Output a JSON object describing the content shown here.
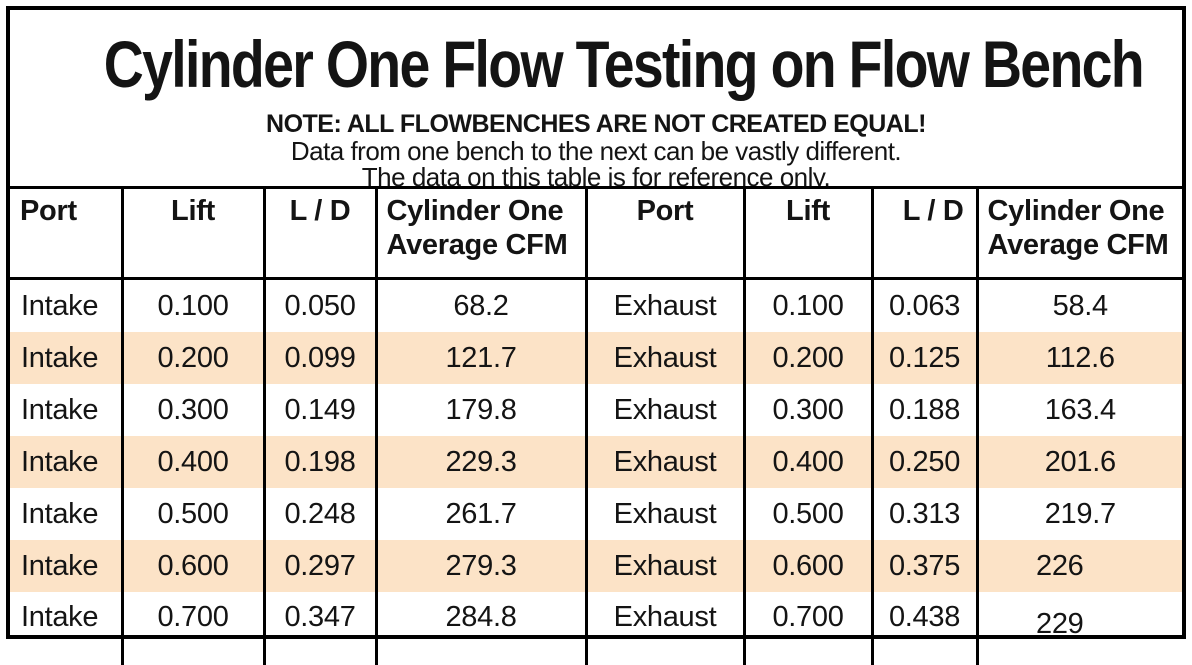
{
  "page": {
    "title": "Cylinder One Flow Testing on Flow Bench",
    "note_bold": "NOTE: ALL FLOWBENCHES ARE NOT CREATED EQUAL!",
    "note_line2": "Data from one bench to the next can be vastly different.",
    "note_line3": "The data on this table is for reference only."
  },
  "colors": {
    "border": "#000000",
    "text": "#141414",
    "row_highlight": "#FCE3C7",
    "background": "#FFFFFF"
  },
  "table": {
    "headers": [
      "Port",
      "Lift",
      "L / D",
      "Cylinder One Average CFM",
      "Port",
      "Lift",
      "L / D",
      "Cylinder One Average CFM"
    ],
    "rows": [
      [
        "Intake",
        "0.100",
        "0.050",
        "68.2",
        "Exhaust",
        "0.100",
        "0.063",
        "58.4"
      ],
      [
        "Intake",
        "0.200",
        "0.099",
        "121.7",
        "Exhaust",
        "0.200",
        "0.125",
        "112.6"
      ],
      [
        "Intake",
        "0.300",
        "0.149",
        "179.8",
        "Exhaust",
        "0.300",
        "0.188",
        "163.4"
      ],
      [
        "Intake",
        "0.400",
        "0.198",
        "229.3",
        "Exhaust",
        "0.400",
        "0.250",
        "201.6"
      ],
      [
        "Intake",
        "0.500",
        "0.248",
        "261.7",
        "Exhaust",
        "0.500",
        "0.313",
        "219.7"
      ],
      [
        "Intake",
        "0.600",
        "0.297",
        "279.3",
        "Exhaust",
        "0.600",
        "0.375",
        "226"
      ],
      [
        "Intake",
        "0.700",
        "0.347",
        "284.8",
        "Exhaust",
        "0.700",
        "0.438",
        "229"
      ]
    ]
  }
}
